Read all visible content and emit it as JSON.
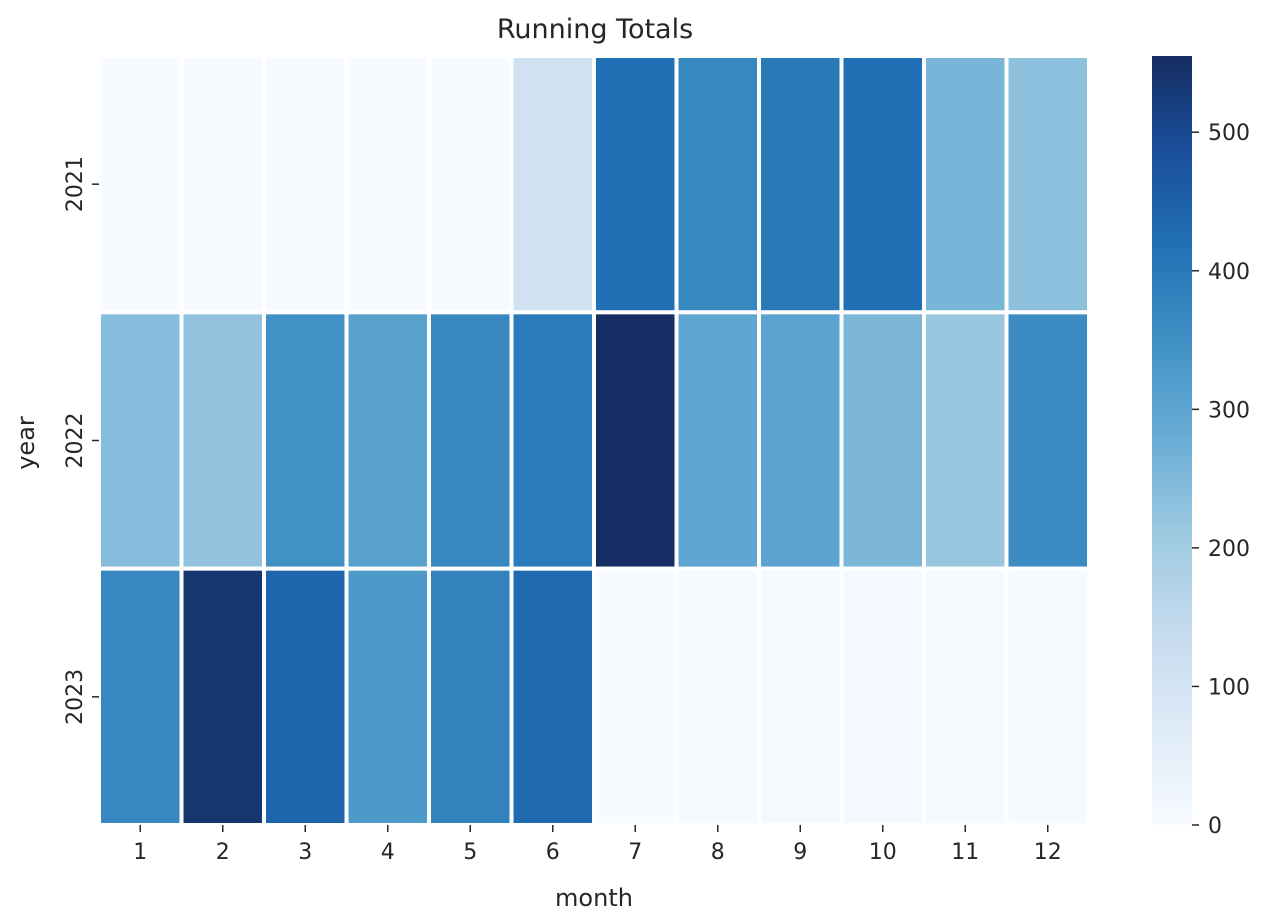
{
  "chart_data": {
    "type": "heatmap",
    "title": "Running Totals",
    "xlabel": "month",
    "ylabel": "year",
    "x_categories": [
      "1",
      "2",
      "3",
      "4",
      "5",
      "6",
      "7",
      "8",
      "9",
      "10",
      "11",
      "12"
    ],
    "y_categories": [
      "2021",
      "2022",
      "2023"
    ],
    "values": [
      [
        0,
        0,
        0,
        0,
        0,
        110,
        420,
        370,
        400,
        420,
        260,
        230
      ],
      [
        240,
        225,
        350,
        310,
        370,
        395,
        555,
        300,
        305,
        255,
        215,
        360
      ],
      [
        370,
        540,
        440,
        330,
        380,
        430,
        0,
        5,
        8,
        10,
        5,
        5
      ]
    ],
    "colorbar": {
      "range": [
        0,
        555
      ],
      "ticks": [
        "0",
        "100",
        "200",
        "300",
        "400",
        "500"
      ],
      "colormap": [
        "#f7fbff",
        "#deebf7",
        "#c6dbef",
        "#9ecae1",
        "#6baed6",
        "#4292c6",
        "#2171b5",
        "#1b4f9c",
        "#162e63"
      ]
    },
    "grid": false,
    "cell_border_color": "#ffffff"
  }
}
